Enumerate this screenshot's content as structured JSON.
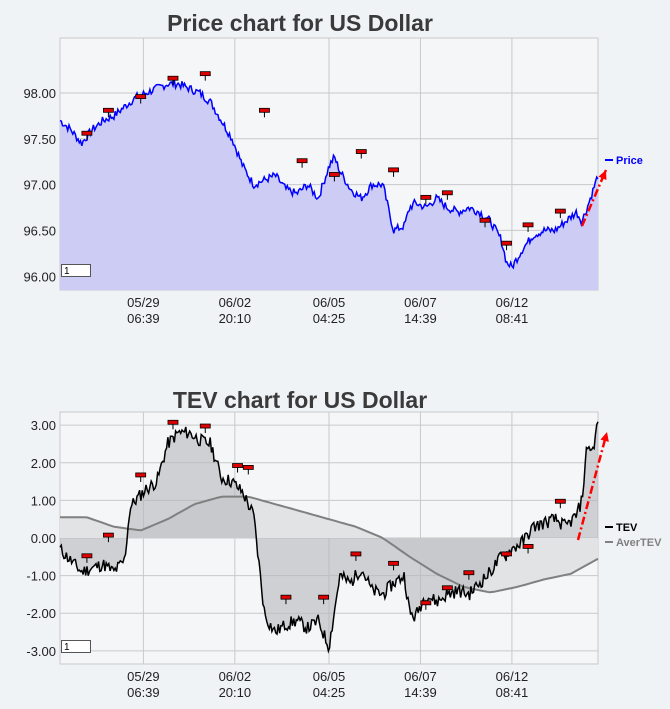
{
  "charts": [
    {
      "title": "Price chart for US Dollar",
      "page_box": "1"
    },
    {
      "title": "TEV chart for US Dollar",
      "page_box": "1"
    }
  ],
  "chart_data": [
    {
      "type": "area",
      "title": "Price chart for US Dollar",
      "x_tick_labels": [
        [
          "05/29",
          "06:39"
        ],
        [
          "06/02",
          "20:10"
        ],
        [
          "06/05",
          "04:25"
        ],
        [
          "06/07",
          "14:39"
        ],
        [
          "06/12",
          "08:41"
        ]
      ],
      "x_tick_index": [
        0.155,
        0.325,
        0.5,
        0.67,
        0.84
      ],
      "ylim": [
        95.85,
        98.6
      ],
      "yticks": [
        "96.00",
        "96.50",
        "97.00",
        "97.50",
        "98.00"
      ],
      "ytick_values": [
        96.0,
        96.5,
        97.0,
        97.5,
        98.0
      ],
      "series": [
        {
          "name": "Price",
          "color": "#0000ff",
          "fill": "#ccccf5",
          "x": [
            0,
            0.02,
            0.04,
            0.06,
            0.08,
            0.1,
            0.12,
            0.14,
            0.16,
            0.18,
            0.2,
            0.22,
            0.24,
            0.26,
            0.28,
            0.3,
            0.32,
            0.34,
            0.36,
            0.38,
            0.4,
            0.42,
            0.44,
            0.46,
            0.48,
            0.5,
            0.51,
            0.52,
            0.54,
            0.56,
            0.58,
            0.6,
            0.62,
            0.64,
            0.65,
            0.66,
            0.68,
            0.7,
            0.72,
            0.74,
            0.76,
            0.78,
            0.8,
            0.82,
            0.83,
            0.84,
            0.86,
            0.88,
            0.9,
            0.92,
            0.94,
            0.96,
            0.97,
            0.98,
            1.0
          ],
          "values": [
            97.7,
            97.6,
            97.45,
            97.6,
            97.7,
            97.75,
            97.85,
            97.95,
            98.0,
            98.05,
            98.1,
            98.1,
            98.05,
            98.0,
            97.9,
            97.7,
            97.5,
            97.2,
            97.0,
            97.05,
            97.1,
            96.95,
            96.9,
            97.0,
            96.85,
            97.2,
            97.3,
            97.15,
            96.95,
            96.85,
            97.0,
            97.0,
            96.5,
            96.55,
            96.75,
            96.8,
            96.75,
            96.85,
            96.75,
            96.7,
            96.75,
            96.7,
            96.6,
            96.4,
            96.15,
            96.1,
            96.3,
            96.45,
            96.5,
            96.5,
            96.6,
            96.7,
            96.6,
            96.75,
            97.1
          ]
        }
      ],
      "markers_x": [
        0.05,
        0.09,
        0.15,
        0.21,
        0.27,
        0.38,
        0.45,
        0.51,
        0.56,
        0.62,
        0.68,
        0.72,
        0.79,
        0.83,
        0.87,
        0.93
      ],
      "markers_y": [
        97.55,
        97.8,
        97.95,
        98.15,
        98.2,
        97.8,
        97.25,
        97.1,
        97.35,
        97.15,
        96.85,
        96.9,
        96.6,
        96.35,
        96.55,
        96.7
      ],
      "legend": [
        {
          "label": "Price",
          "color": "#0000ff"
        }
      ],
      "legend_position": "right"
    },
    {
      "type": "line",
      "title": "TEV chart for US Dollar",
      "x_tick_labels": [
        [
          "05/29",
          "06:39"
        ],
        [
          "06/02",
          "20:10"
        ],
        [
          "06/05",
          "04:25"
        ],
        [
          "06/07",
          "14:39"
        ],
        [
          "06/12",
          "08:41"
        ]
      ],
      "x_tick_index": [
        0.155,
        0.325,
        0.5,
        0.67,
        0.84
      ],
      "ylim": [
        -3.35,
        3.35
      ],
      "yticks": [
        "-3.00",
        "-2.00",
        "-1.00",
        "0.00",
        "1.00",
        "2.00",
        "3.00"
      ],
      "ytick_values": [
        -3,
        -2,
        -1,
        0,
        1,
        2,
        3
      ],
      "series": [
        {
          "name": "TEV",
          "color": "#000000",
          "x": [
            0,
            0.02,
            0.04,
            0.06,
            0.08,
            0.1,
            0.12,
            0.13,
            0.14,
            0.16,
            0.18,
            0.2,
            0.22,
            0.24,
            0.26,
            0.28,
            0.3,
            0.32,
            0.34,
            0.36,
            0.38,
            0.39,
            0.4,
            0.42,
            0.44,
            0.46,
            0.48,
            0.5,
            0.52,
            0.54,
            0.56,
            0.58,
            0.6,
            0.62,
            0.64,
            0.65,
            0.66,
            0.68,
            0.7,
            0.72,
            0.74,
            0.76,
            0.78,
            0.8,
            0.82,
            0.84,
            0.86,
            0.88,
            0.9,
            0.92,
            0.94,
            0.96,
            0.97,
            0.98,
            0.99,
            1.0
          ],
          "values": [
            -0.3,
            -0.6,
            -0.9,
            -0.8,
            -0.7,
            -0.9,
            -0.6,
            0.8,
            1.0,
            1.3,
            1.5,
            2.5,
            2.8,
            2.8,
            2.6,
            2.5,
            1.6,
            1.5,
            1.2,
            0.6,
            -2.0,
            -2.3,
            -2.5,
            -2.3,
            -2.2,
            -2.4,
            -2.2,
            -2.9,
            -1.0,
            -1.2,
            -0.8,
            -1.4,
            -1.5,
            -1.2,
            -1.0,
            -2.0,
            -2.1,
            -1.5,
            -1.7,
            -1.5,
            -1.4,
            -1.5,
            -1.2,
            -0.9,
            -0.5,
            -0.3,
            -0.1,
            0.3,
            0.4,
            0.5,
            0.3,
            0.6,
            1.0,
            2.5,
            2.3,
            3.1
          ]
        },
        {
          "name": "AverTEV",
          "color": "#808080",
          "x": [
            0,
            0.05,
            0.1,
            0.15,
            0.2,
            0.25,
            0.3,
            0.35,
            0.4,
            0.45,
            0.5,
            0.55,
            0.6,
            0.65,
            0.7,
            0.75,
            0.8,
            0.85,
            0.9,
            0.95,
            1.0
          ],
          "values": [
            0.55,
            0.55,
            0.3,
            0.2,
            0.5,
            0.9,
            1.1,
            1.1,
            0.9,
            0.7,
            0.5,
            0.3,
            0.0,
            -0.5,
            -0.95,
            -1.3,
            -1.45,
            -1.3,
            -1.1,
            -0.95,
            -0.55
          ]
        }
      ],
      "markers_x": [
        0.05,
        0.09,
        0.15,
        0.21,
        0.27,
        0.33,
        0.35,
        0.42,
        0.49,
        0.55,
        0.62,
        0.68,
        0.72,
        0.76,
        0.83,
        0.87,
        0.93
      ],
      "markers_y": [
        -0.5,
        0.05,
        1.65,
        3.05,
        2.95,
        1.9,
        1.85,
        -1.6,
        -1.6,
        -0.45,
        -0.7,
        -1.75,
        -1.35,
        -0.95,
        -0.45,
        -0.25,
        0.95
      ],
      "legend": [
        {
          "label": "TEV",
          "color": "#000000"
        },
        {
          "label": "AverTEV",
          "color": "#808080"
        }
      ],
      "legend_position": "right"
    }
  ]
}
